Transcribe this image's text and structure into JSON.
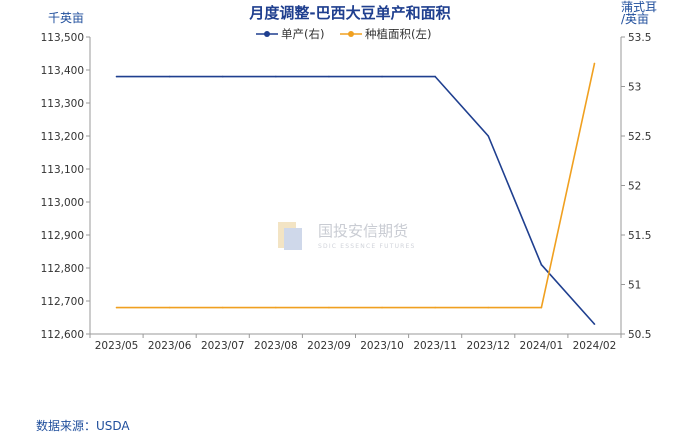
{
  "chart_data": {
    "type": "line",
    "title": "月度调整-巴西大豆单产和面积",
    "left_unit": "千英亩",
    "right_unit_line1": "蒲式耳",
    "right_unit_line2": "/英亩",
    "categories": [
      "2023/05",
      "2023/06",
      "2023/07",
      "2023/08",
      "2023/09",
      "2023/10",
      "2023/11",
      "2023/12",
      "2024/01",
      "2024/02"
    ],
    "left_axis": {
      "min": 112600,
      "max": 113500,
      "step": 100,
      "ticks": [
        "112,600",
        "112,700",
        "112,800",
        "112,900",
        "113,000",
        "113,100",
        "113,200",
        "113,300",
        "113,400",
        "113,500"
      ]
    },
    "right_axis": {
      "min": 50.5,
      "max": 53.5,
      "step": 0.5,
      "ticks": [
        "50.5",
        "51",
        "51.5",
        "52",
        "52.5",
        "53",
        "53.5"
      ]
    },
    "series": [
      {
        "name": "单产(右)",
        "axis": "right",
        "color": "#1f3f8f",
        "values": [
          53.1,
          53.1,
          53.1,
          53.1,
          53.1,
          53.1,
          53.1,
          52.5,
          51.2,
          50.6
        ]
      },
      {
        "name": "种植面积(左)",
        "axis": "left",
        "color": "#f0a020",
        "values": [
          112680,
          112680,
          112680,
          112680,
          112680,
          112680,
          112680,
          112680,
          112680,
          113420
        ]
      }
    ],
    "grid": false,
    "legend_position": "top-center"
  },
  "source_text": "数据来源：USDA",
  "watermark": {
    "text": "国投安信期货",
    "subtext": "SDIC ESSENCE FUTURES"
  }
}
